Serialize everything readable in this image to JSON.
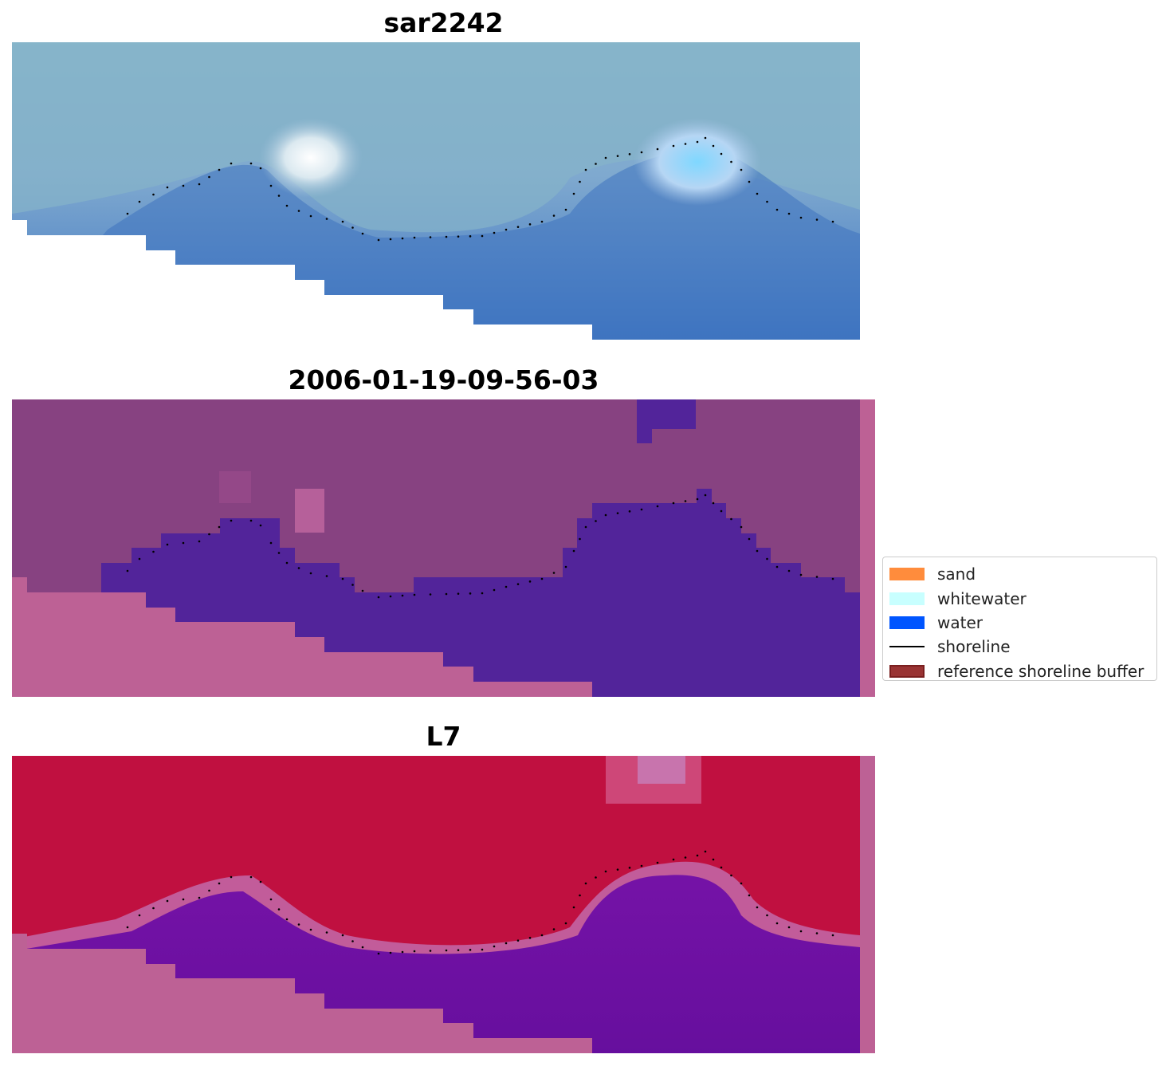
{
  "panels": [
    {
      "title": "sar2242"
    },
    {
      "title": "2006-01-19-09-56-03"
    },
    {
      "title": "L7"
    }
  ],
  "legend": {
    "items": [
      {
        "label": "sand",
        "color": "#ff8c3c",
        "kind": "patch"
      },
      {
        "label": "whitewater",
        "color": "#c8ffff",
        "kind": "patch"
      },
      {
        "label": "water",
        "color": "#0055ff",
        "kind": "patch"
      },
      {
        "label": "shoreline",
        "color": "#000000",
        "kind": "line"
      },
      {
        "label": "reference shoreline buffer",
        "color": "#993333",
        "kind": "patch"
      }
    ]
  }
}
